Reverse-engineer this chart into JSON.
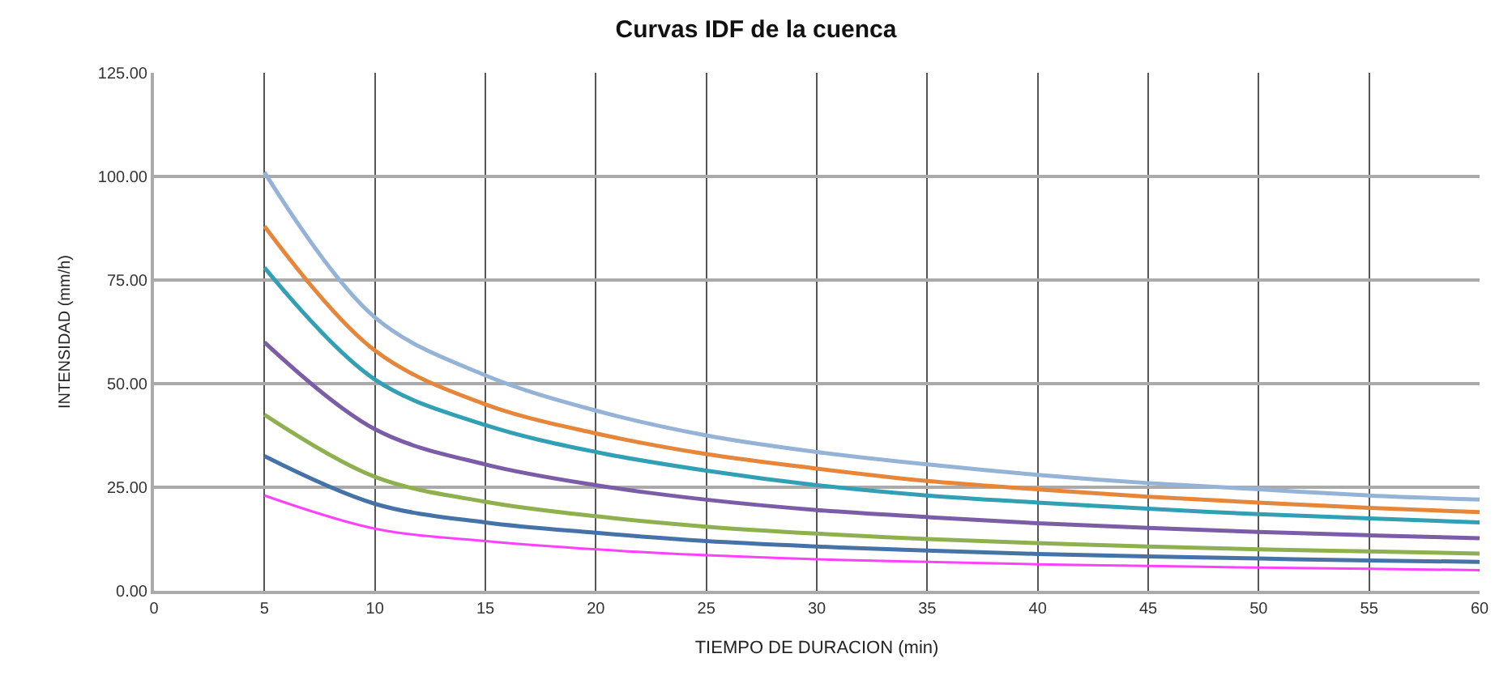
{
  "chart_data": {
    "type": "line",
    "title": "Curvas IDF de la cuenca",
    "xlabel": "TIEMPO DE DURACION (min)",
    "ylabel": "INTENSIDAD (mm/h)",
    "x": [
      5,
      10,
      15,
      20,
      25,
      30,
      35,
      40,
      45,
      50,
      55,
      60
    ],
    "series": [
      {
        "color": "#95b3d7",
        "values": [
          101,
          66,
          52,
          43.5,
          37.5,
          33.5,
          30.5,
          28,
          26,
          24.5,
          23,
          22
        ]
      },
      {
        "color": "#e6863b",
        "values": [
          88,
          58,
          45,
          38,
          33,
          29.5,
          26.5,
          24.5,
          22.7,
          21.3,
          20,
          19
        ]
      },
      {
        "color": "#31a0b5",
        "values": [
          78,
          51,
          40,
          33.5,
          29,
          25.5,
          23,
          21.3,
          19.8,
          18.5,
          17.5,
          16.5
        ]
      },
      {
        "color": "#7b5ca7",
        "values": [
          60,
          39,
          30.5,
          25.5,
          22,
          19.5,
          17.8,
          16.3,
          15.2,
          14.2,
          13.4,
          12.7
        ]
      },
      {
        "color": "#8fb04f",
        "values": [
          42.5,
          27.5,
          21.5,
          18,
          15.5,
          13.8,
          12.5,
          11.5,
          10.7,
          10,
          9.5,
          9
        ]
      },
      {
        "color": "#4572a7",
        "values": [
          32.5,
          21,
          16.5,
          14,
          12,
          10.7,
          9.7,
          8.9,
          8.3,
          7.8,
          7.3,
          7
        ]
      },
      {
        "color": "#ff40ff",
        "values": [
          23,
          15,
          12,
          10,
          8.6,
          7.6,
          7,
          6.4,
          6,
          5.6,
          5.3,
          5
        ]
      }
    ],
    "xlim": [
      0,
      60
    ],
    "xticks": [
      0,
      5,
      10,
      15,
      20,
      25,
      30,
      35,
      40,
      45,
      50,
      55,
      60
    ],
    "ylim": [
      0,
      125
    ],
    "yticks": [
      {
        "value": 0,
        "label": "0.00"
      },
      {
        "value": 25,
        "label": "25.00"
      },
      {
        "value": 50,
        "label": "50.00"
      },
      {
        "value": 75,
        "label": "75.00"
      },
      {
        "value": 100,
        "label": "100.00"
      },
      {
        "value": 125,
        "label": "125.00"
      }
    ],
    "grid": true,
    "marker": "none",
    "line_style": "solid"
  }
}
